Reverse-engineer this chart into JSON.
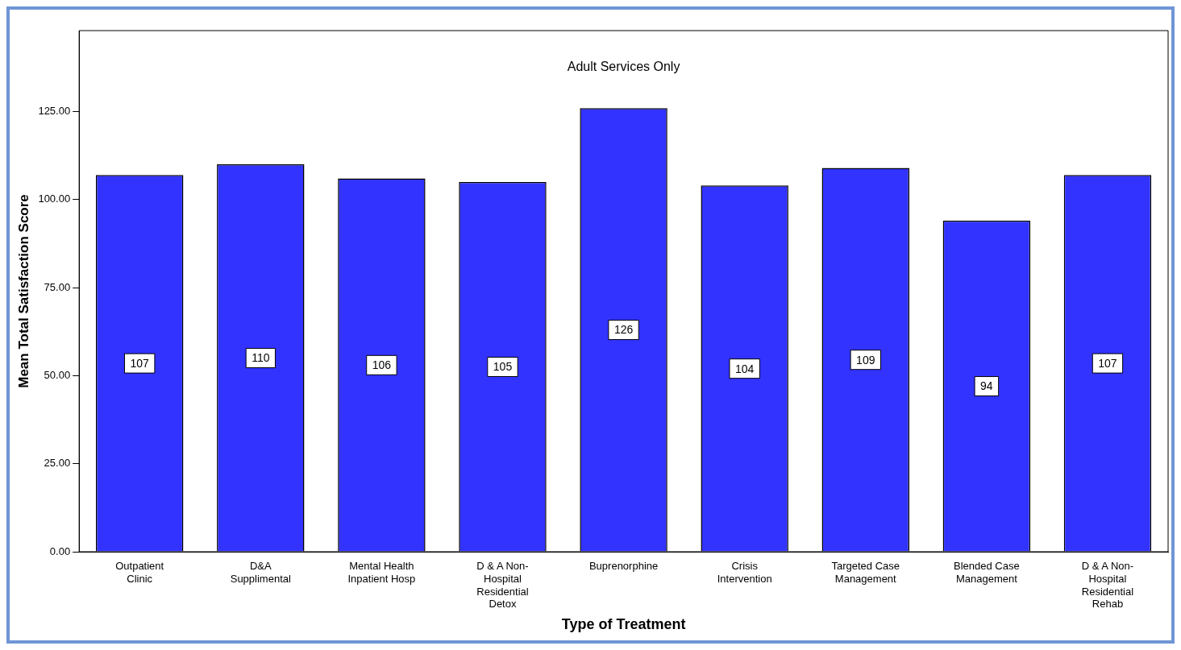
{
  "chart_data": {
    "type": "bar",
    "title": "Adult Services Only",
    "xlabel": "Type of Treatment",
    "ylabel": "Mean Total Satisfaction Score",
    "categories": [
      "Outpatient Clinic",
      "D&A Supplimental",
      "Mental Health Inpatient Hosp",
      "D & A Non-Hospital Residential Detox",
      "Buprenorphine",
      "Crisis Intervention",
      "Targeted Case Management",
      "Blended Case Management",
      "D & A Non-Hospital Residential Rehab"
    ],
    "values": [
      107,
      110,
      106,
      105,
      126,
      104,
      109,
      94,
      107
    ],
    "color": "#3333ff",
    "ylim": [
      0,
      148
    ],
    "yticks": [
      {
        "value": 0,
        "label": "0.00"
      },
      {
        "value": 25,
        "label": "25.00"
      },
      {
        "value": 50,
        "label": "50.00"
      },
      {
        "value": 75,
        "label": "75.00"
      },
      {
        "value": 100,
        "label": "100.00"
      },
      {
        "value": 125,
        "label": "125.00"
      }
    ],
    "data_labels": true,
    "grid": false,
    "legend": false
  }
}
